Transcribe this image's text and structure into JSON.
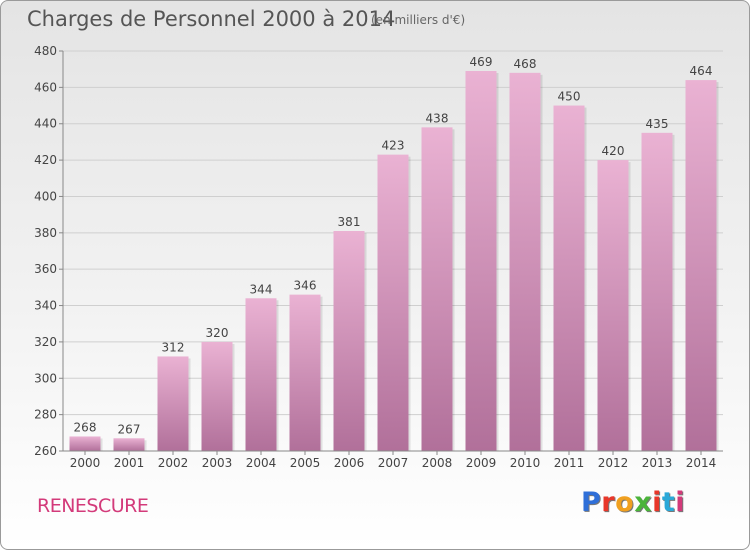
{
  "header": {
    "title": "Charges de Personnel 2000 à 2014",
    "subtitle": "(en milliers d'€)"
  },
  "footer": {
    "city": "RENESCURE",
    "brand": "Proxiti",
    "brand_colors": [
      "#2f6fd8",
      "#e8372a",
      "#f0a020",
      "#4bb43a",
      "#e8372a",
      "#2aa8d8",
      "#d33a7a"
    ]
  },
  "colors": {
    "bar_top": "#eab2d3",
    "bar_bottom": "#b1709a",
    "accent": "#d33a7a"
  },
  "chart_data": {
    "type": "bar",
    "title": "Charges de Personnel 2000 à 2014",
    "subtitle": "(en milliers d'€)",
    "categories": [
      "2000",
      "2001",
      "2002",
      "2003",
      "2004",
      "2005",
      "2006",
      "2007",
      "2008",
      "2009",
      "2010",
      "2011",
      "2012",
      "2013",
      "2014"
    ],
    "values": [
      268,
      267,
      312,
      320,
      344,
      346,
      381,
      423,
      438,
      469,
      468,
      450,
      420,
      435,
      464
    ],
    "ylim": [
      260,
      480
    ],
    "yticks": [
      260,
      280,
      300,
      320,
      340,
      360,
      380,
      400,
      420,
      440,
      460,
      480
    ],
    "grid": true,
    "xlabel": "",
    "ylabel": ""
  }
}
